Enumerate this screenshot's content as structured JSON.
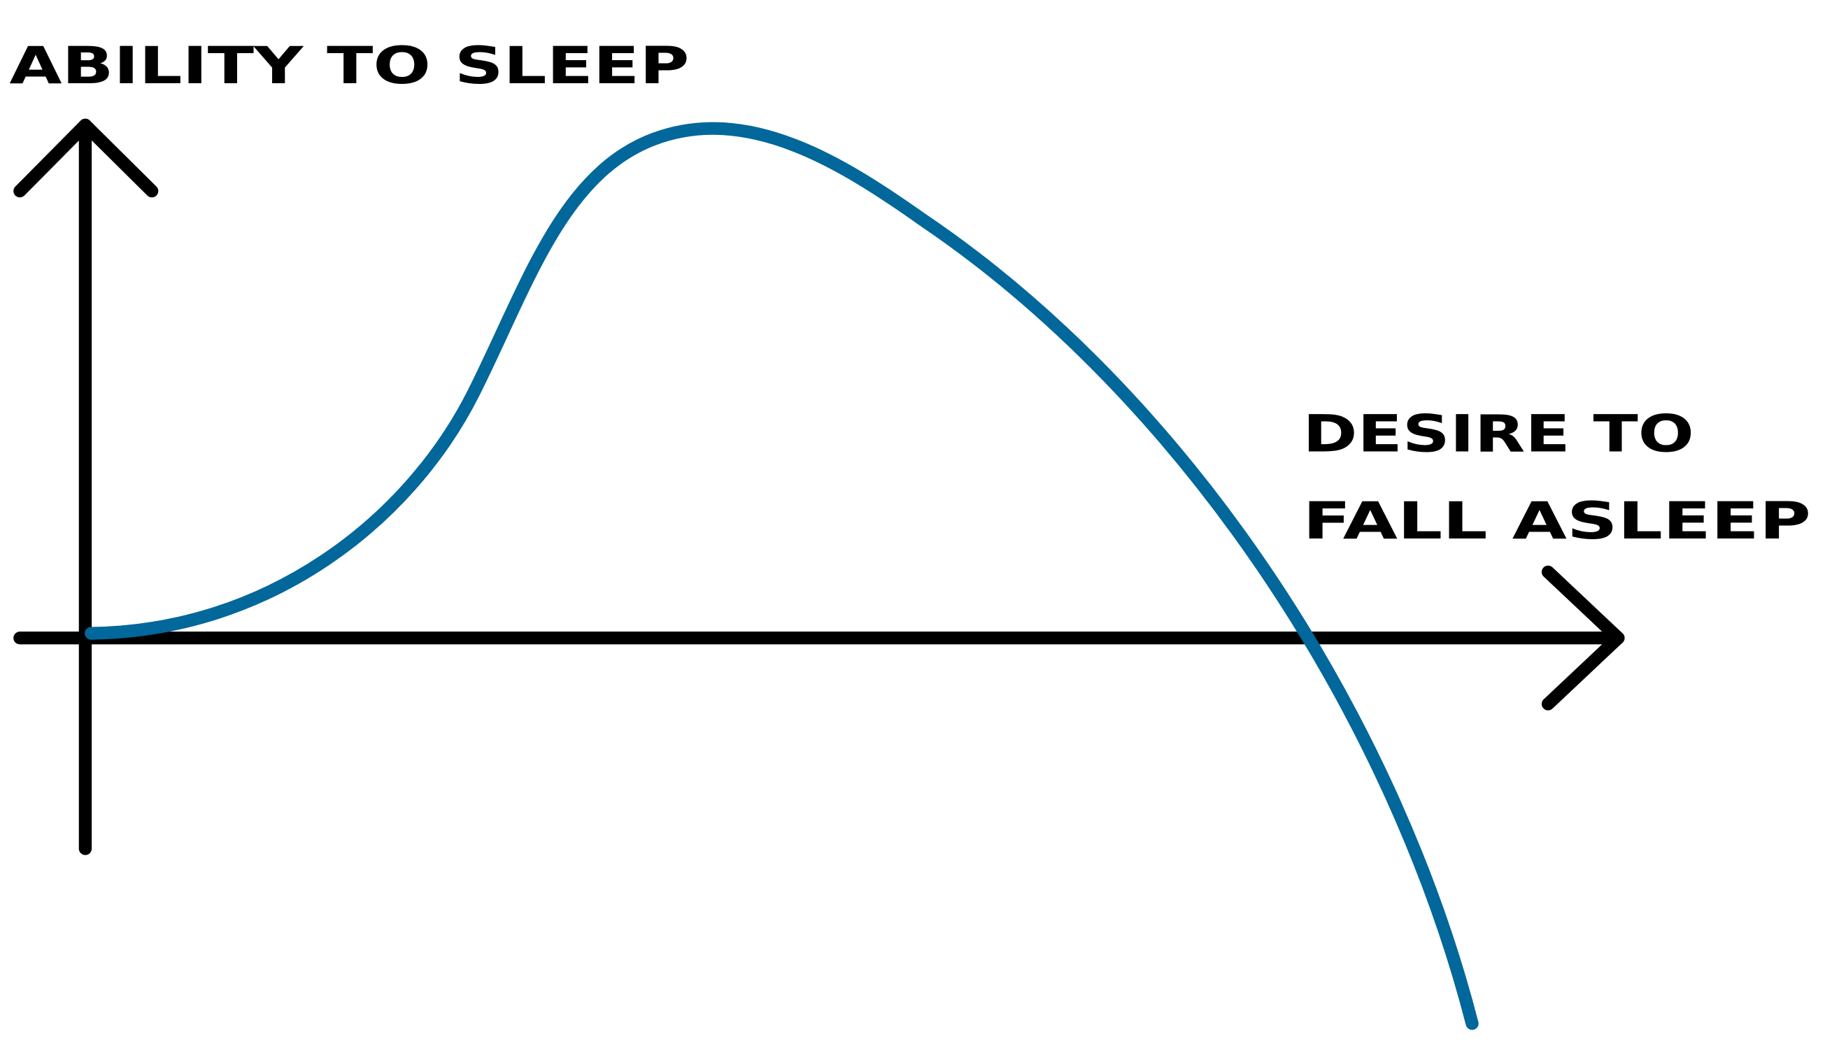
{
  "y_axis_label": "ABILITY TO SLEEP",
  "x_axis_label": [
    "DESIRE TO",
    "FALL ASLEEP"
  ]
}
